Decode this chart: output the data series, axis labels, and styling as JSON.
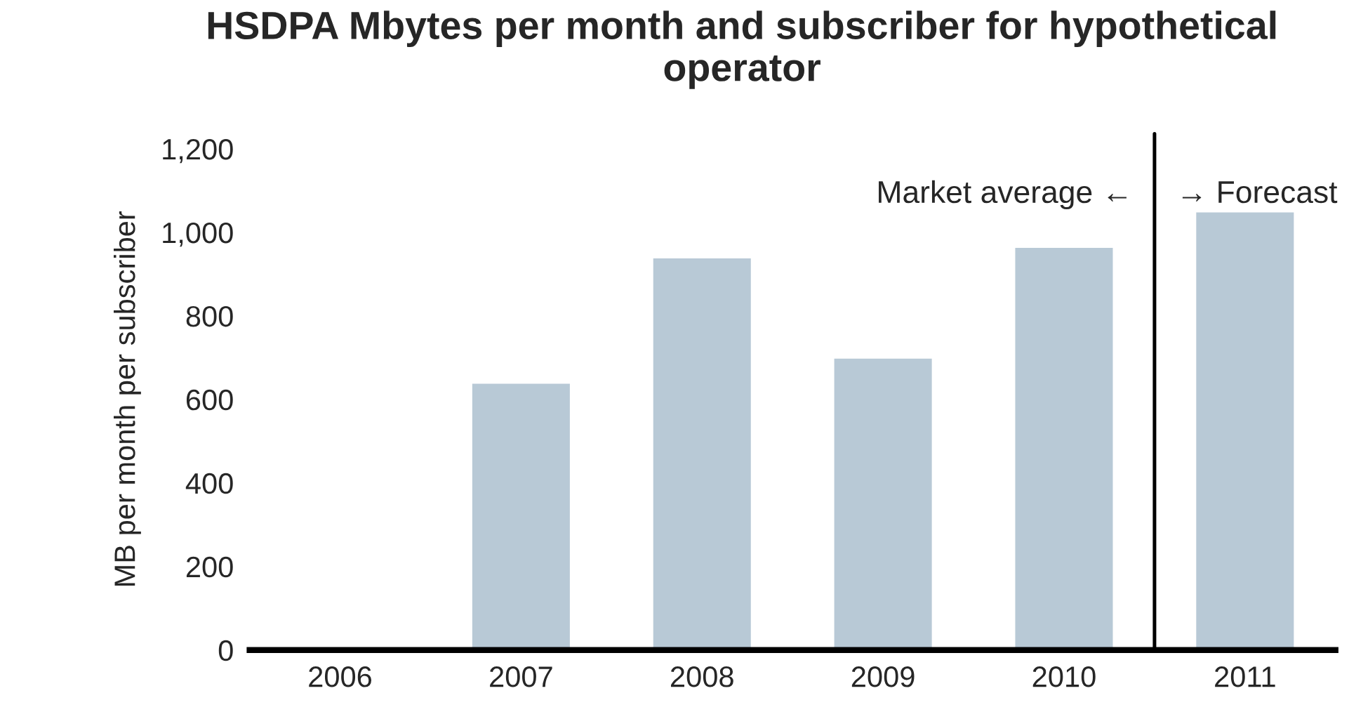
{
  "chart_data": {
    "type": "bar",
    "title": "HSDPA Mbytes per month and subscriber for hypothetical operator",
    "ylabel": "MB per month per subscriber",
    "categories": [
      "2006",
      "2007",
      "2008",
      "2009",
      "2010",
      "2011"
    ],
    "values": [
      null,
      640,
      940,
      700,
      965,
      1050
    ],
    "color": "#b8c9d6",
    "ylim": [
      0,
      1200
    ],
    "yticks": [
      0,
      {
        "value": 200,
        "label": "200"
      },
      {
        "value": 400,
        "label": "400"
      },
      {
        "value": 600,
        "label": "600"
      },
      {
        "value": 800,
        "label": "800"
      },
      {
        "value": 1000,
        "label": "1,000"
      },
      {
        "value": 1200,
        "label": "1,200"
      }
    ],
    "grid": false,
    "annotations": [
      "Market average ←",
      "→ Forecast"
    ]
  }
}
